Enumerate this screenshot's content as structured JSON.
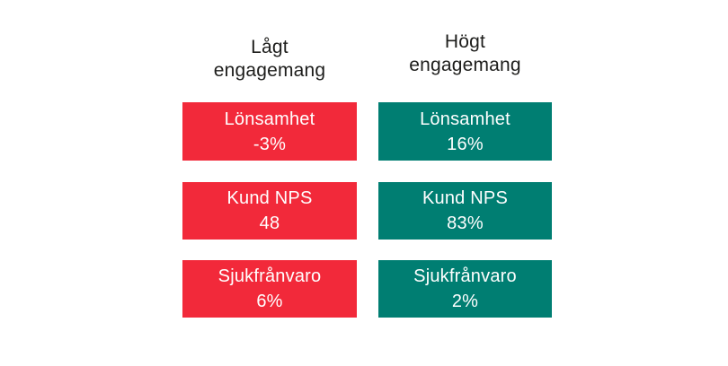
{
  "page": {
    "background": "#ffffff",
    "heading_text_color": "#1d1d1b"
  },
  "columns": [
    {
      "header": "Lågt engagemang",
      "color": "#f2293a",
      "text_color": "#ffffff",
      "metrics": [
        {
          "label": "Lönsamhet",
          "value": "-3%"
        },
        {
          "label": "Kund NPS",
          "value": "48"
        },
        {
          "label": "Sjukfrånvaro",
          "value": "6%"
        }
      ]
    },
    {
      "header": "Högt engagemang",
      "color": "#007e72",
      "text_color": "#ffffff",
      "metrics": [
        {
          "label": "Lönsamhet",
          "value": "16%"
        },
        {
          "label": "Kund NPS",
          "value": "83%"
        },
        {
          "label": "Sjukfrånvaro",
          "value": "2%"
        }
      ]
    }
  ],
  "chart_data": {
    "type": "table",
    "title": "",
    "columns": [
      "Lågt engagemang",
      "Högt engagemang"
    ],
    "rows": [
      {
        "metric": "Lönsamhet",
        "lagt_engagemang": "-3%",
        "hogt_engagemang": "16%"
      },
      {
        "metric": "Kund NPS",
        "lagt_engagemang": "48",
        "hogt_engagemang": "83%"
      },
      {
        "metric": "Sjukfrånvaro",
        "lagt_engagemang": "6%",
        "hogt_engagemang": "2%"
      }
    ],
    "colors": {
      "lagt_engagemang": "#f2293a",
      "hogt_engagemang": "#007e72"
    },
    "legend_position": "none",
    "grid": false
  }
}
